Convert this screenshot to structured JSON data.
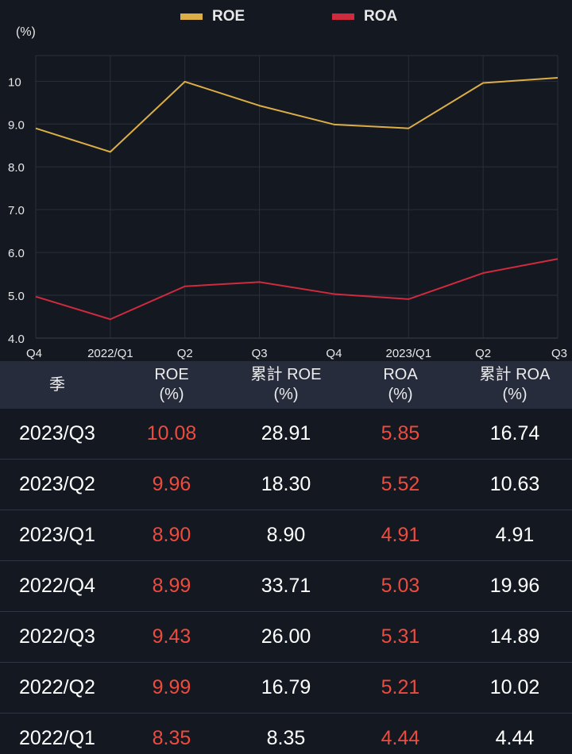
{
  "legend": {
    "roe_label": "ROE",
    "roa_label": "ROA"
  },
  "colors": {
    "roe": "#dcae45",
    "roa": "#d02a3e",
    "red_value": "#ee4b3e"
  },
  "chart_data": {
    "type": "line",
    "unit_label": "(%)",
    "categories": [
      "Q4",
      "2022/Q1",
      "Q2",
      "Q3",
      "Q4",
      "2023/Q1",
      "Q2",
      "Q3"
    ],
    "series": [
      {
        "name": "ROE",
        "values": [
          8.9,
          8.35,
          9.99,
          9.43,
          8.99,
          8.9,
          9.96,
          10.08
        ]
      },
      {
        "name": "ROA",
        "values": [
          4.97,
          4.44,
          5.21,
          5.31,
          5.03,
          4.91,
          5.52,
          5.85
        ]
      }
    ],
    "y_ticks": [
      "4.0",
      "5.0",
      "6.0",
      "7.0",
      "8.0",
      "9.0",
      "10"
    ],
    "ylim": [
      4.0,
      10.6
    ],
    "grid": true
  },
  "table": {
    "headers": [
      "季",
      "ROE\n(%)",
      "累計 ROE\n(%)",
      "ROA\n(%)",
      "累計 ROA\n(%)"
    ],
    "rows": [
      [
        "2023/Q3",
        "10.08",
        "28.91",
        "5.85",
        "16.74"
      ],
      [
        "2023/Q2",
        "9.96",
        "18.30",
        "5.52",
        "10.63"
      ],
      [
        "2023/Q1",
        "8.90",
        "8.90",
        "4.91",
        "4.91"
      ],
      [
        "2022/Q4",
        "8.99",
        "33.71",
        "5.03",
        "19.96"
      ],
      [
        "2022/Q3",
        "9.43",
        "26.00",
        "5.31",
        "14.89"
      ],
      [
        "2022/Q2",
        "9.99",
        "16.79",
        "5.21",
        "10.02"
      ],
      [
        "2022/Q1",
        "8.35",
        "8.35",
        "4.44",
        "4.44"
      ]
    ]
  }
}
